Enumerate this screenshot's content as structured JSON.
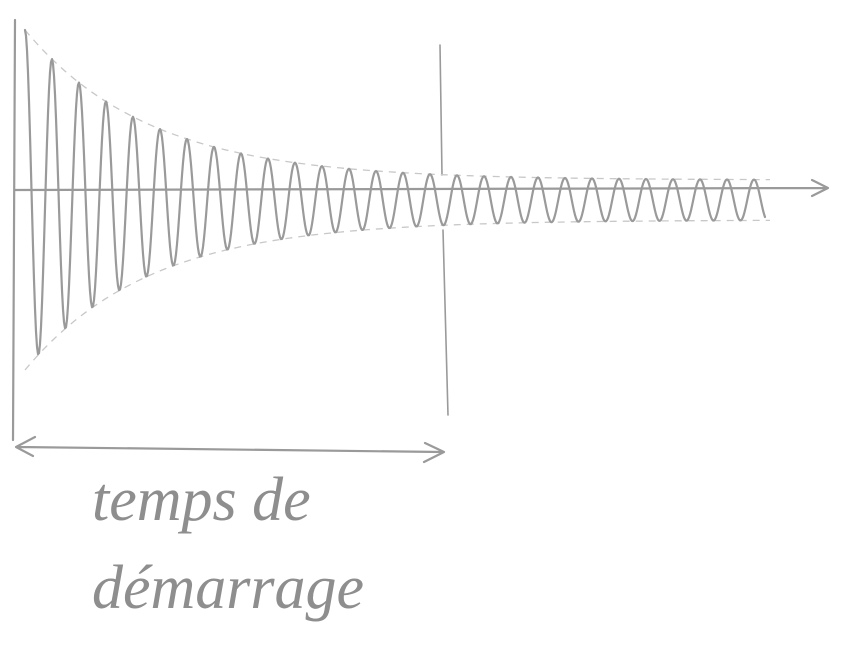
{
  "annotation": {
    "lines": [
      "temps de",
      "démarrage"
    ]
  }
}
